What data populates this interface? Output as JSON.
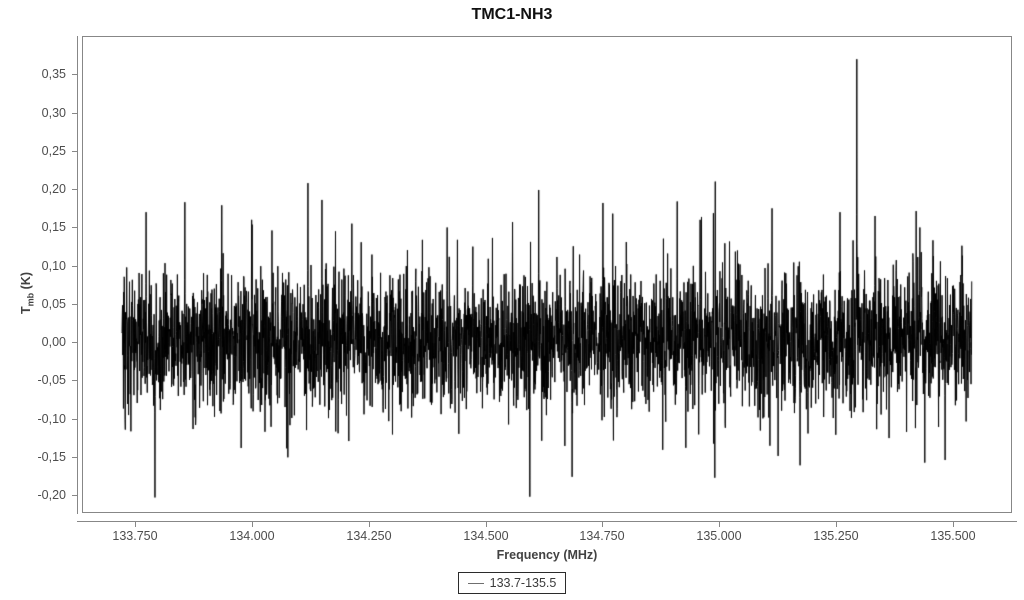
{
  "chart_data": {
    "type": "line",
    "title": "TMC1-NH3",
    "xlabel": "Frequency (MHz)",
    "ylabel": "Tmb (K)",
    "ylabel_parts": {
      "main": "T",
      "sub": "mb",
      "unit": " (K)"
    },
    "xlim": [
      133.639,
      135.624
    ],
    "ylim": [
      -0.222,
      0.399
    ],
    "grid": false,
    "x_ticks": {
      "values": [
        133.75,
        134.0,
        134.25,
        134.5,
        134.75,
        135.0,
        135.25,
        135.5
      ],
      "labels": [
        "133.750",
        "134.000",
        "134.250",
        "134.500",
        "134.750",
        "135.000",
        "135.250",
        "135.500"
      ]
    },
    "y_ticks": {
      "values": [
        0.35,
        0.3,
        0.25,
        0.2,
        0.15,
        0.1,
        0.05,
        0.0,
        -0.05,
        -0.1,
        -0.15,
        -0.2
      ],
      "labels": [
        "0,35",
        "0,30",
        "0,25",
        "0,20",
        "0,15",
        "0,10",
        "0,05",
        "0,00",
        "-0,05",
        "-0,10",
        "-0,15",
        "-0,20"
      ]
    },
    "legend": {
      "position": "bottom-center",
      "items": [
        {
          "label": "133.7-135.5",
          "color": "#000000"
        }
      ]
    },
    "series": [
      {
        "name": "133.7-135.5",
        "color": "#000000",
        "x_start": 133.722,
        "x_end": 135.54,
        "points": 3640,
        "noise": {
          "mean": 0.003,
          "sigma": 0.043,
          "tail_sigma": 0.065,
          "tail_prob": 0.1,
          "seed": 20117,
          "clip_low": -0.195,
          "clip_high": 0.21
        },
        "spikes": [
          {
            "x": 133.774,
            "y": 0.17
          },
          {
            "x": 133.793,
            "y": -0.203
          },
          {
            "x": 133.857,
            "y": 0.183
          },
          {
            "x": 133.936,
            "y": 0.179
          },
          {
            "x": 134.0,
            "y": 0.16
          },
          {
            "x": 134.12,
            "y": 0.208
          },
          {
            "x": 134.15,
            "y": 0.186
          },
          {
            "x": 134.214,
            "y": 0.155
          },
          {
            "x": 134.418,
            "y": 0.15
          },
          {
            "x": 134.558,
            "y": 0.157
          },
          {
            "x": 134.595,
            "y": -0.202
          },
          {
            "x": 134.614,
            "y": 0.199
          },
          {
            "x": 134.685,
            "y": -0.176
          },
          {
            "x": 134.751,
            "y": 0.182
          },
          {
            "x": 134.91,
            "y": 0.184
          },
          {
            "x": 134.959,
            "y": 0.16
          },
          {
            "x": 135.113,
            "y": 0.175
          },
          {
            "x": 135.173,
            "y": -0.161
          },
          {
            "x": 135.258,
            "y": 0.17
          },
          {
            "x": 135.294,
            "y": 0.37
          },
          {
            "x": 135.333,
            "y": 0.165
          },
          {
            "x": 135.429,
            "y": 0.15
          },
          {
            "x": 135.483,
            "y": -0.154
          }
        ]
      }
    ]
  },
  "colors": {
    "background": "#ffffff",
    "axis": "#878787",
    "tick_text": "#4d4d4d",
    "axis_title_text": "#424242",
    "title_text": "#111111",
    "series": "#000000",
    "legend_border": "#2b2b2b"
  }
}
